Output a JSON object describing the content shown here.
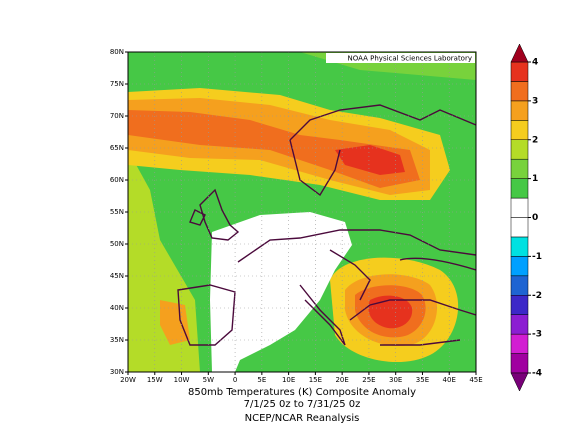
{
  "lab": "NOAA Physical Sciences Laboratory",
  "title_lines": [
    "850mb Temperatures (K)   Composite Anomaly",
    "7/1/25 0z  to 7/31/25 0z",
    "NCEP/NCAR Reanalysis"
  ],
  "lat_ticks": [
    "80N",
    "75N",
    "70N",
    "65N",
    "60N",
    "55N",
    "50N",
    "45N",
    "40N",
    "35N",
    "30N"
  ],
  "lon_ticks": [
    "20W",
    "15W",
    "10W",
    "5W",
    "0",
    "5E",
    "10E",
    "15E",
    "20E",
    "25E",
    "30E",
    "35E",
    "40E",
    "45E"
  ],
  "colorbar": {
    "ticks": [
      4,
      3,
      2,
      1,
      0,
      -1,
      -2,
      -3,
      -4
    ],
    "bounds": [
      -4,
      -3.5,
      -3,
      -2.5,
      -2,
      -1.5,
      -1,
      -0.5,
      0,
      0.5,
      1,
      1.5,
      2,
      2.5,
      3,
      3.5,
      4
    ],
    "colors": [
      "#a000a0",
      "#d21ed2",
      "#8c1ed2",
      "#3c28c8",
      "#1e64d2",
      "#00a0ff",
      "#00e1e1",
      "#ffffff",
      "#ffffff",
      "#46c846",
      "#78d23c",
      "#b4dc28",
      "#f5cd1e",
      "#f5a01e",
      "#f06e1e",
      "#e6321e"
    ],
    "under_color": "#780078",
    "over_color": "#a0001e"
  }
}
